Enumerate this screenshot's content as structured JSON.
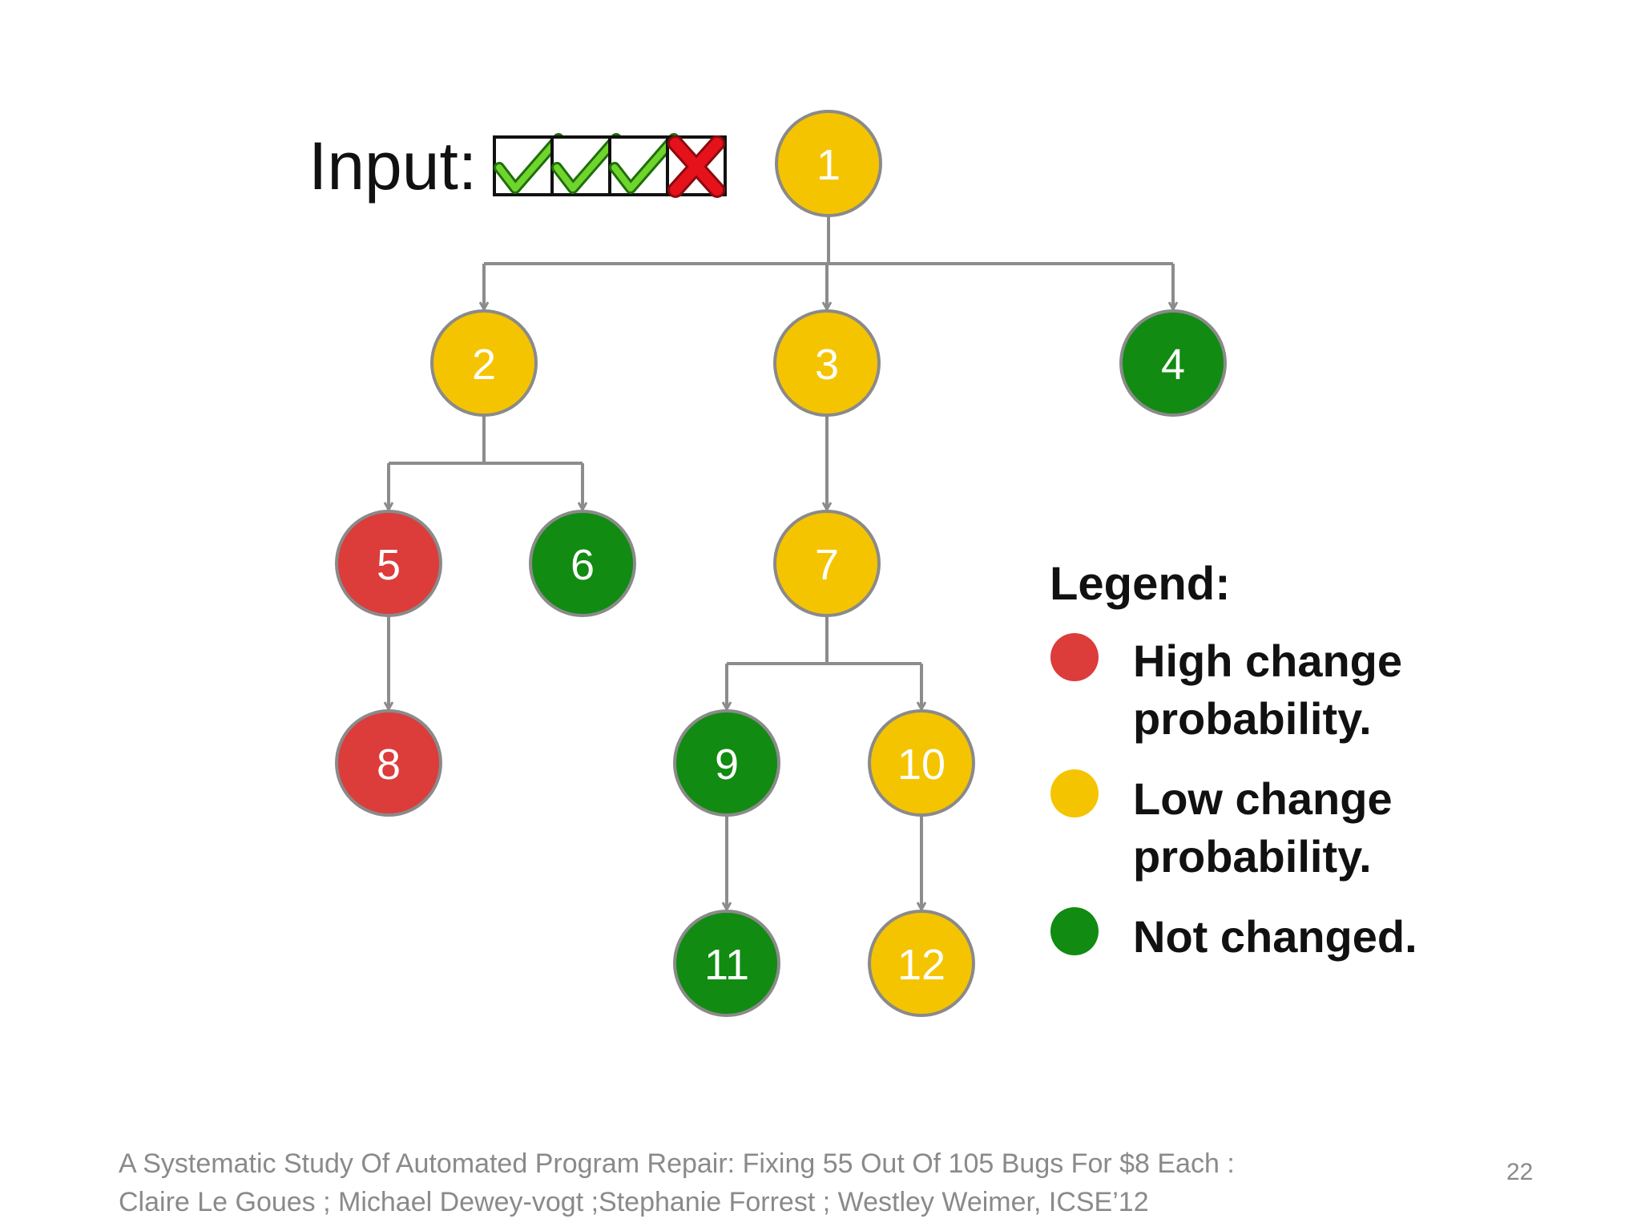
{
  "input": {
    "label": "Input:",
    "results": [
      "pass",
      "pass",
      "pass",
      "fail"
    ]
  },
  "nodes": [
    {
      "id": "1",
      "status": "low"
    },
    {
      "id": "2",
      "status": "low"
    },
    {
      "id": "3",
      "status": "low"
    },
    {
      "id": "4",
      "status": "unchanged"
    },
    {
      "id": "5",
      "status": "high"
    },
    {
      "id": "6",
      "status": "unchanged"
    },
    {
      "id": "7",
      "status": "low"
    },
    {
      "id": "8",
      "status": "high"
    },
    {
      "id": "9",
      "status": "unchanged"
    },
    {
      "id": "10",
      "status": "low"
    },
    {
      "id": "11",
      "status": "unchanged"
    },
    {
      "id": "12",
      "status": "low"
    }
  ],
  "edges": [
    [
      "1",
      "2"
    ],
    [
      "1",
      "3"
    ],
    [
      "1",
      "4"
    ],
    [
      "2",
      "5"
    ],
    [
      "2",
      "6"
    ],
    [
      "3",
      "7"
    ],
    [
      "5",
      "8"
    ],
    [
      "7",
      "9"
    ],
    [
      "7",
      "10"
    ],
    [
      "9",
      "11"
    ],
    [
      "10",
      "12"
    ]
  ],
  "legend": {
    "title": "Legend:",
    "items": [
      {
        "status": "high",
        "lines": [
          "High change",
          "probability."
        ]
      },
      {
        "status": "low",
        "lines": [
          "Low change",
          "probability."
        ]
      },
      {
        "status": "unchanged",
        "lines": [
          "Not changed."
        ]
      }
    ]
  },
  "colors": {
    "high": "#dc3c3a",
    "low": "#f5c400",
    "unchanged": "#118b11",
    "edge": "#8c8c8c",
    "check": "#6fd52c",
    "cross": "#e6121b"
  },
  "footer": {
    "line1": "A Systematic Study  Of Automated  Program Repair:  Fixing 55 Out Of 105  Bugs For $8 Each :",
    "line2": "Claire Le Goues ; Michael  Dewey-vogt ;Stephanie  Forrest ;  Westley Weimer, ICSE’12"
  },
  "page_number": "22"
}
